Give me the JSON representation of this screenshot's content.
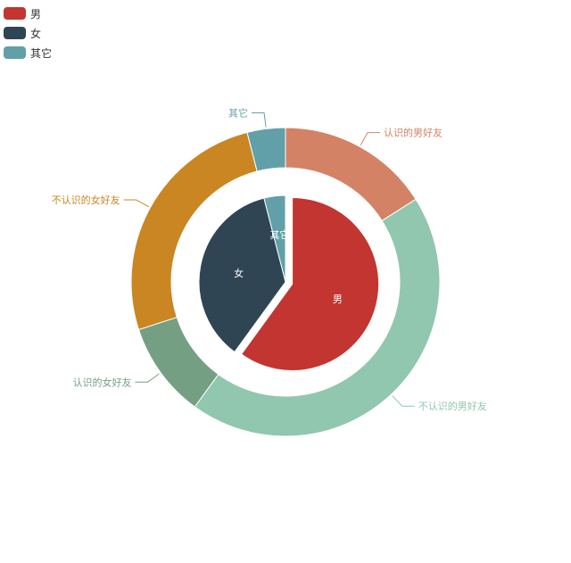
{
  "legend": {
    "items": [
      {
        "label": "男",
        "color": "#c23531"
      },
      {
        "label": "女",
        "color": "#2f4554"
      },
      {
        "label": "其它",
        "color": "#61a0a8"
      }
    ]
  },
  "chart_data": {
    "type": "pie",
    "series": [
      {
        "ring": "inner",
        "slices": [
          {
            "name": "男",
            "value": 60,
            "color": "#c23531"
          },
          {
            "name": "女",
            "value": 36,
            "color": "#2f4554"
          },
          {
            "name": "其它",
            "value": 4,
            "color": "#61a0a8"
          }
        ]
      },
      {
        "ring": "outer",
        "slices": [
          {
            "name": "认识的男好友",
            "value": 16,
            "color": "#d48265"
          },
          {
            "name": "不认识的男好友",
            "value": 44,
            "color": "#91c7ae"
          },
          {
            "name": "认识的女好友",
            "value": 10,
            "color": "#749f83"
          },
          {
            "name": "不认识的女好友",
            "value": 26,
            "color": "#ca8622"
          },
          {
            "name": "其它",
            "value": 4,
            "color": "#61a0a8"
          }
        ]
      }
    ]
  }
}
